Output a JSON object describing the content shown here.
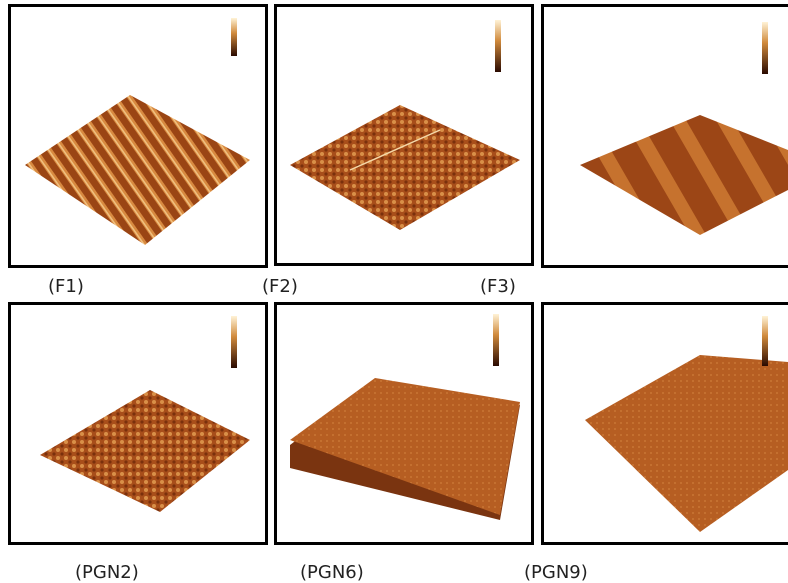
{
  "panels": [
    {
      "label": "(F1)"
    },
    {
      "label": "(F2)"
    },
    {
      "label": "(F3)"
    },
    {
      "label": "(PGN2)"
    },
    {
      "label": "(PGN6)"
    },
    {
      "label": "(PGN9)"
    }
  ]
}
